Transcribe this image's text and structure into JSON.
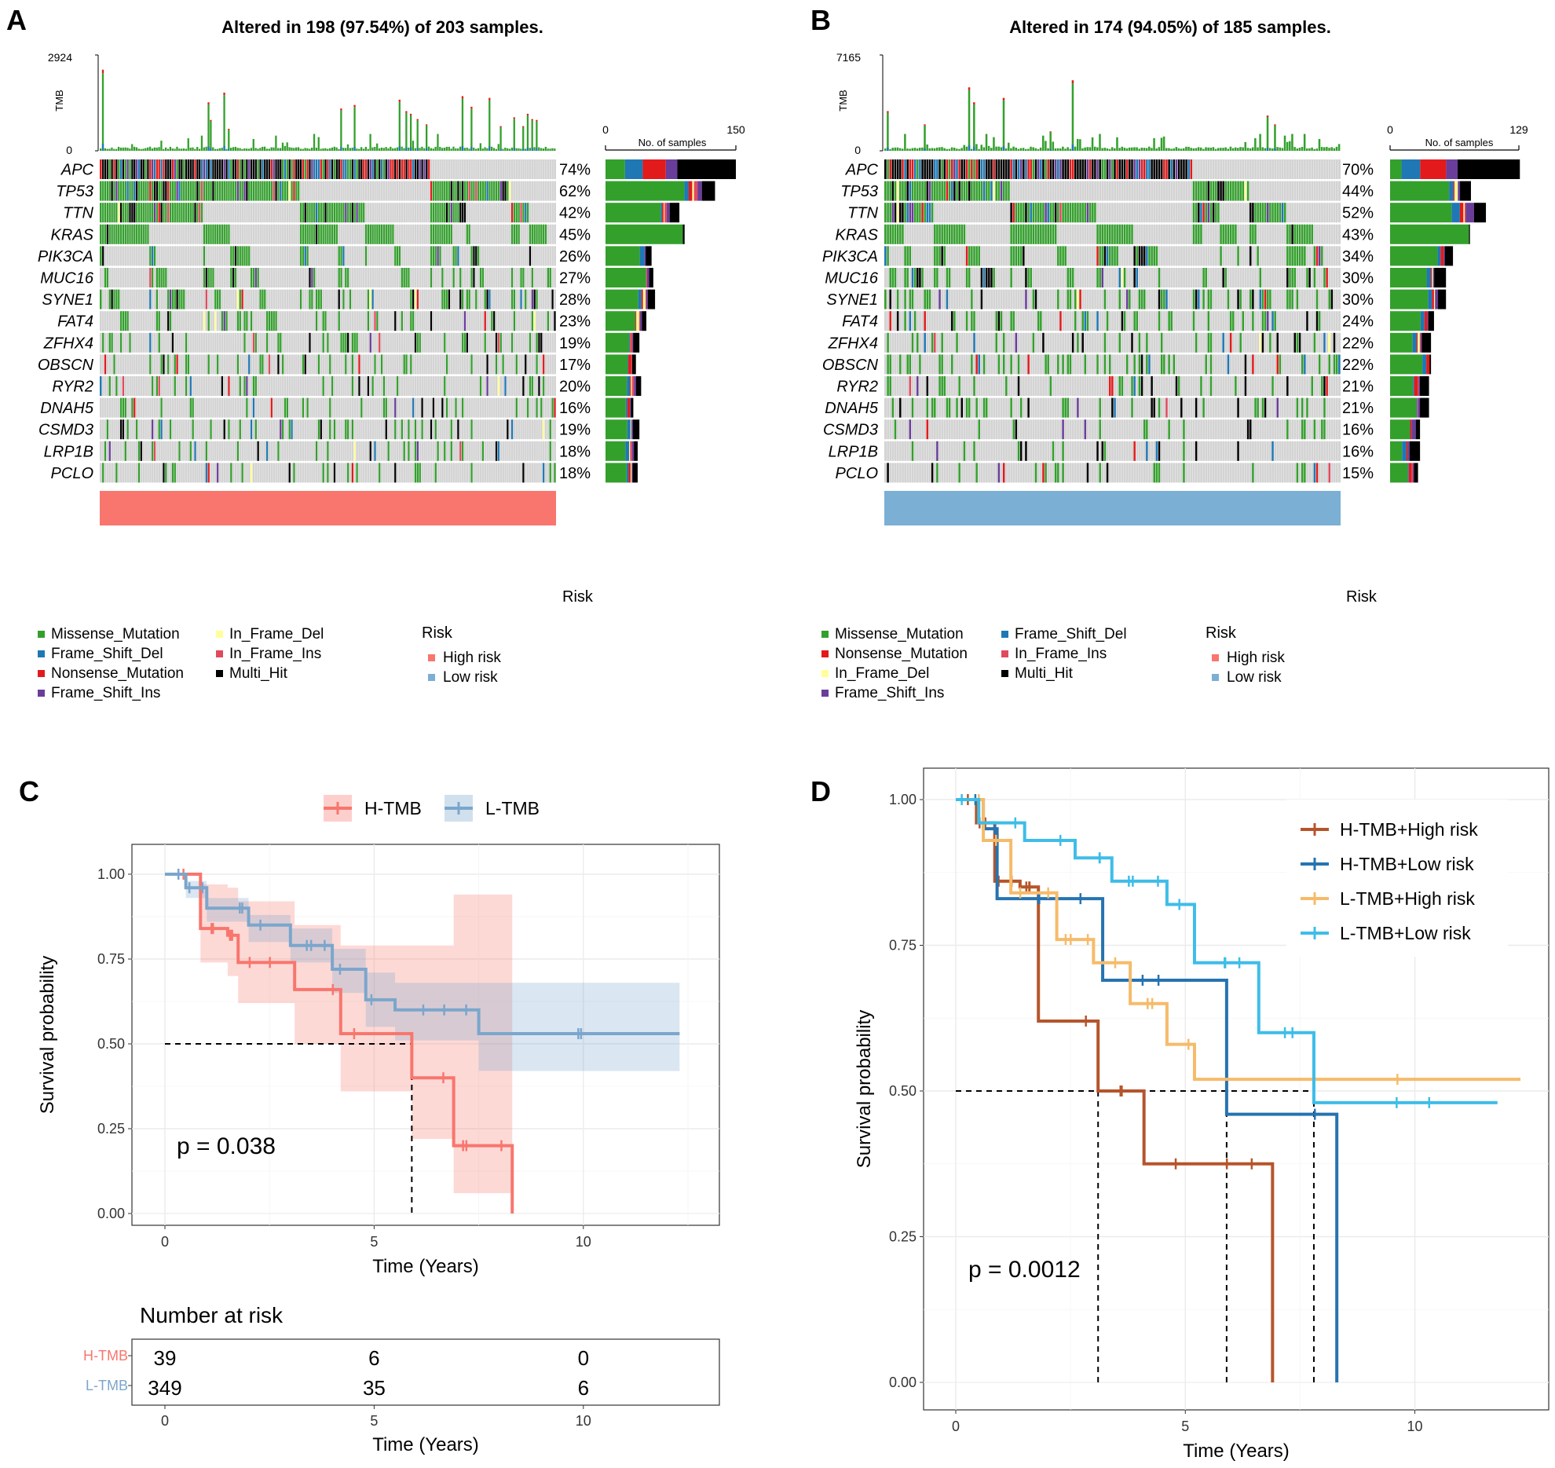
{
  "panels": {
    "A": {
      "letter": "A",
      "title": "Altered in 198 (97.54%) of 203 samples.",
      "tmb_label": "TMB",
      "tmb_max": 2924,
      "tmb_min": 0,
      "bar_axis_label": "No. of samples",
      "bar_axis_min": 0,
      "bar_axis_max": 150,
      "risk_label": "Risk",
      "risk_group": "High risk",
      "legend_mutation": [
        "Missense_Mutation",
        "Frame_Shift_Del",
        "Nonsense_Mutation",
        "Frame_Shift_Ins",
        "In_Frame_Del",
        "In_Frame_Ins",
        "Multi_Hit"
      ],
      "legend_risk_title": "Risk",
      "legend_risk": [
        "High risk",
        "Low risk"
      ]
    },
    "B": {
      "letter": "B",
      "title": "Altered in 174 (94.05%) of 185 samples.",
      "tmb_label": "TMB",
      "tmb_max": 7165,
      "tmb_min": 0,
      "bar_axis_label": "No. of samples",
      "bar_axis_min": 0,
      "bar_axis_max": 129,
      "risk_label": "Risk",
      "risk_group": "Low risk",
      "legend_mutation": [
        "Missense_Mutation",
        "Nonsense_Mutation",
        "In_Frame_Del",
        "Frame_Shift_Ins",
        "Frame_Shift_Del",
        "In_Frame_Ins",
        "Multi_Hit"
      ],
      "legend_risk_title": "Risk",
      "legend_risk": [
        "High risk",
        "Low risk"
      ]
    },
    "C": {
      "letter": "C",
      "p_value": "p = 0.038",
      "risk_table_title": "Number at risk"
    },
    "D": {
      "letter": "D",
      "p_value": "p = 0.0012"
    }
  },
  "colors": {
    "Missense_Mutation": "#33a02c",
    "Frame_Shift_Del": "#1f78b4",
    "Nonsense_Mutation": "#e31a1c",
    "Frame_Shift_Ins": "#6a3d9a",
    "In_Frame_Del": "#ffff99",
    "In_Frame_Ins": "#e14a5c",
    "Multi_Hit": "#000000",
    "High risk": "#f8766d",
    "Low risk": "#7bafd4",
    "no_mutation": "#d3d3d3",
    "H-TMB": "#f8766d",
    "L-TMB": "#7ba6cc",
    "H-TMB+High risk": "#b5552b",
    "H-TMB+Low risk": "#2673b0",
    "L-TMB+High risk": "#f6bb6a",
    "L-TMB+Low risk": "#3ebde8"
  },
  "chart_data": [
    {
      "type": "heatmap",
      "panel": "A",
      "title": "Altered in 198 (97.54%) of 203 samples.",
      "genes": [
        "APC",
        "TP53",
        "TTN",
        "KRAS",
        "PIK3CA",
        "MUC16",
        "SYNE1",
        "FAT4",
        "ZFHX4",
        "OBSCN",
        "RYR2",
        "DNAH5",
        "CSMD3",
        "LRP1B",
        "PCLO"
      ],
      "percent_labels": [
        "74%",
        "62%",
        "42%",
        "45%",
        "26%",
        "27%",
        "28%",
        "23%",
        "19%",
        "17%",
        "20%",
        "16%",
        "19%",
        "18%",
        "18%"
      ],
      "percent": [
        74,
        62,
        42,
        45,
        26,
        27,
        28,
        23,
        19,
        17,
        20,
        16,
        19,
        18,
        18
      ],
      "n_samples": 203,
      "tmb_ylim": [
        0,
        2924
      ],
      "bar_xlim": [
        0,
        150
      ]
    },
    {
      "type": "heatmap",
      "panel": "B",
      "title": "Altered in 174 (94.05%) of 185 samples.",
      "genes": [
        "APC",
        "TP53",
        "TTN",
        "KRAS",
        "PIK3CA",
        "MUC16",
        "SYNE1",
        "FAT4",
        "ZFHX4",
        "OBSCN",
        "RYR2",
        "DNAH5",
        "CSMD3",
        "LRP1B",
        "PCLO"
      ],
      "percent_labels": [
        "70%",
        "44%",
        "52%",
        "43%",
        "34%",
        "30%",
        "30%",
        "24%",
        "22%",
        "22%",
        "21%",
        "21%",
        "16%",
        "16%",
        "15%"
      ],
      "percent": [
        70,
        44,
        52,
        43,
        34,
        30,
        30,
        24,
        22,
        22,
        21,
        21,
        16,
        16,
        15
      ],
      "n_samples": 185,
      "tmb_ylim": [
        0,
        7165
      ],
      "bar_xlim": [
        0,
        129
      ]
    },
    {
      "type": "line",
      "panel": "C",
      "xlabel": "Time (Years)",
      "ylabel": "Survival probability",
      "xlim": [
        0,
        12.5
      ],
      "ylim": [
        0,
        1
      ],
      "x_ticks": [
        0,
        5,
        10
      ],
      "y_ticks": [
        "0.00",
        "0.25",
        "0.50",
        "0.75",
        "1.00"
      ],
      "series": [
        {
          "name": "H-TMB",
          "x": [
            0,
            0.85,
            1.5,
            1.75,
            3.1,
            4.2,
            5.9,
            6.9,
            8.3
          ],
          "y": [
            1.0,
            0.84,
            0.82,
            0.74,
            0.66,
            0.53,
            0.4,
            0.2,
            0.0
          ],
          "upper": [
            1.0,
            0.97,
            0.96,
            0.92,
            0.85,
            0.79,
            0.79,
            0.94,
            0.94
          ],
          "lower": [
            1.0,
            0.74,
            0.7,
            0.62,
            0.5,
            0.36,
            0.22,
            0.06,
            0.0
          ]
        },
        {
          "name": "L-TMB",
          "x": [
            0,
            0.5,
            1,
            2,
            3,
            4,
            4.8,
            5.5,
            7.5,
            12.3
          ],
          "y": [
            1.0,
            0.96,
            0.9,
            0.85,
            0.79,
            0.72,
            0.63,
            0.6,
            0.53,
            0.53
          ],
          "upper": [
            1.0,
            0.98,
            0.93,
            0.88,
            0.84,
            0.78,
            0.71,
            0.68,
            0.68,
            0.68
          ],
          "lower": [
            1.0,
            0.93,
            0.86,
            0.8,
            0.74,
            0.65,
            0.55,
            0.51,
            0.42,
            0.42
          ]
        }
      ],
      "median_lines": [
        5.9
      ],
      "risk_table": {
        "title": "Number at risk",
        "xlabel": "Time (Years)",
        "times": [
          0,
          5,
          10
        ],
        "rows": [
          {
            "name": "H-TMB",
            "values": [
              39,
              6,
              0
            ]
          },
          {
            "name": "L-TMB",
            "values": [
              349,
              35,
              6
            ]
          }
        ]
      }
    },
    {
      "type": "line",
      "panel": "D",
      "xlabel": "Time (Years)",
      "ylabel": "Survival probability",
      "xlim": [
        0,
        12.3
      ],
      "ylim": [
        0,
        1
      ],
      "x_ticks": [
        0,
        5,
        10
      ],
      "y_ticks": [
        "0.00",
        "0.25",
        "0.50",
        "0.75",
        "1.00"
      ],
      "series": [
        {
          "name": "H-TMB+High risk",
          "x": [
            0,
            0.45,
            0.85,
            1.4,
            1.8,
            3.1,
            4.1,
            6.9
          ],
          "y": [
            1.0,
            0.96,
            0.86,
            0.85,
            0.62,
            0.5,
            0.375,
            0.0
          ]
        },
        {
          "name": "H-TMB+Low risk",
          "x": [
            0,
            0.6,
            0.9,
            3.2,
            5.9,
            8.3
          ],
          "y": [
            1.0,
            0.95,
            0.83,
            0.69,
            0.46,
            0.0
          ]
        },
        {
          "name": "L-TMB+High risk",
          "x": [
            0,
            0.6,
            1.2,
            2.2,
            3.0,
            3.8,
            4.6,
            5.2,
            12.3
          ],
          "y": [
            1.0,
            0.93,
            0.84,
            0.76,
            0.72,
            0.65,
            0.58,
            0.52,
            0.52
          ]
        },
        {
          "name": "L-TMB+Low risk",
          "x": [
            0,
            0.5,
            1.5,
            2.6,
            3.4,
            4.6,
            5.2,
            6.6,
            7.8,
            11.8
          ],
          "y": [
            1.0,
            0.96,
            0.93,
            0.9,
            0.86,
            0.82,
            0.72,
            0.6,
            0.48,
            0.48
          ]
        }
      ],
      "median_lines": [
        3.1,
        5.9,
        7.8
      ]
    }
  ]
}
